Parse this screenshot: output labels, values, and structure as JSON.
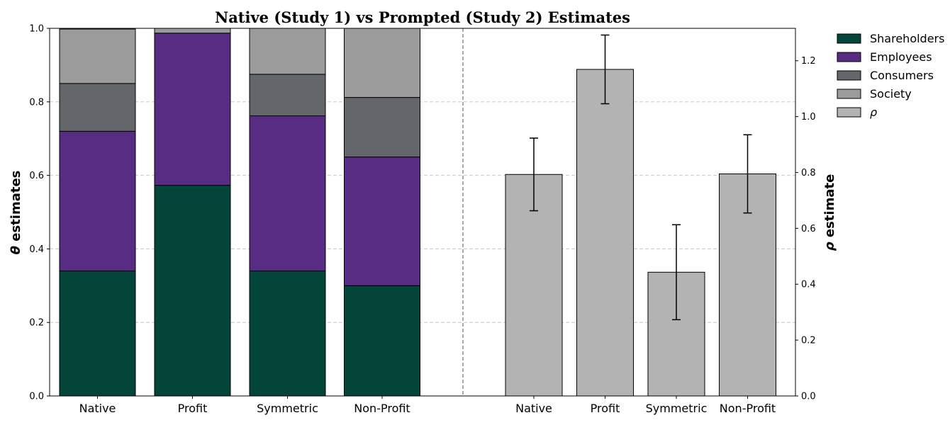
{
  "chart_data": {
    "title": "Native (Study 1) vs Prompted (Study 2) Estimates",
    "grid": true,
    "legend_position": "outside-right-top",
    "panels": [
      {
        "type": "bar",
        "stacked": true,
        "axis_side": "left",
        "ylabel_symbol": "θ",
        "ylabel_text": " estimates",
        "ylim": [
          0,
          1
        ],
        "yticks": [
          0.0,
          0.2,
          0.4,
          0.6,
          0.8,
          1.0
        ],
        "ytick_labels": [
          "0.0",
          "0.2",
          "0.4",
          "0.6",
          "0.8",
          "1.0"
        ],
        "categories": [
          "Native",
          "Profit",
          "Symmetric",
          "Non-Profit"
        ],
        "series": [
          {
            "name": "Shareholders",
            "color": "#04453a",
            "values": [
              0.34,
              0.573,
              0.34,
              0.3
            ]
          },
          {
            "name": "Employees",
            "color": "#582c83",
            "values": [
              0.38,
              0.414,
              0.422,
              0.35
            ]
          },
          {
            "name": "Consumers",
            "color": "#63666a",
            "values": [
              0.13,
              0.0,
              0.113,
              0.162
            ]
          },
          {
            "name": "Society",
            "color": "#9b9b9b",
            "values": [
              0.148,
              0.013,
              0.125,
              0.188
            ]
          }
        ]
      },
      {
        "type": "bar",
        "axis_side": "right",
        "ylabel_symbol": "ρ",
        "ylabel_text": " estimate",
        "ylim": [
          0,
          1.316
        ],
        "yticks": [
          0.0,
          0.2,
          0.4,
          0.6,
          0.8,
          1.0,
          1.2
        ],
        "ytick_labels": [
          "0.0",
          "0.2",
          "0.4",
          "0.6",
          "0.8",
          "1.0",
          "1.2"
        ],
        "categories": [
          "Native",
          "Profit",
          "Symmetric",
          "Non-Profit"
        ],
        "series": [
          {
            "name": "ρ",
            "color": "#b3b3b3",
            "values": [
              0.793,
              1.169,
              0.443,
              0.795
            ],
            "error": [
              0.13,
              0.123,
              0.17,
              0.14
            ]
          }
        ]
      }
    ]
  }
}
